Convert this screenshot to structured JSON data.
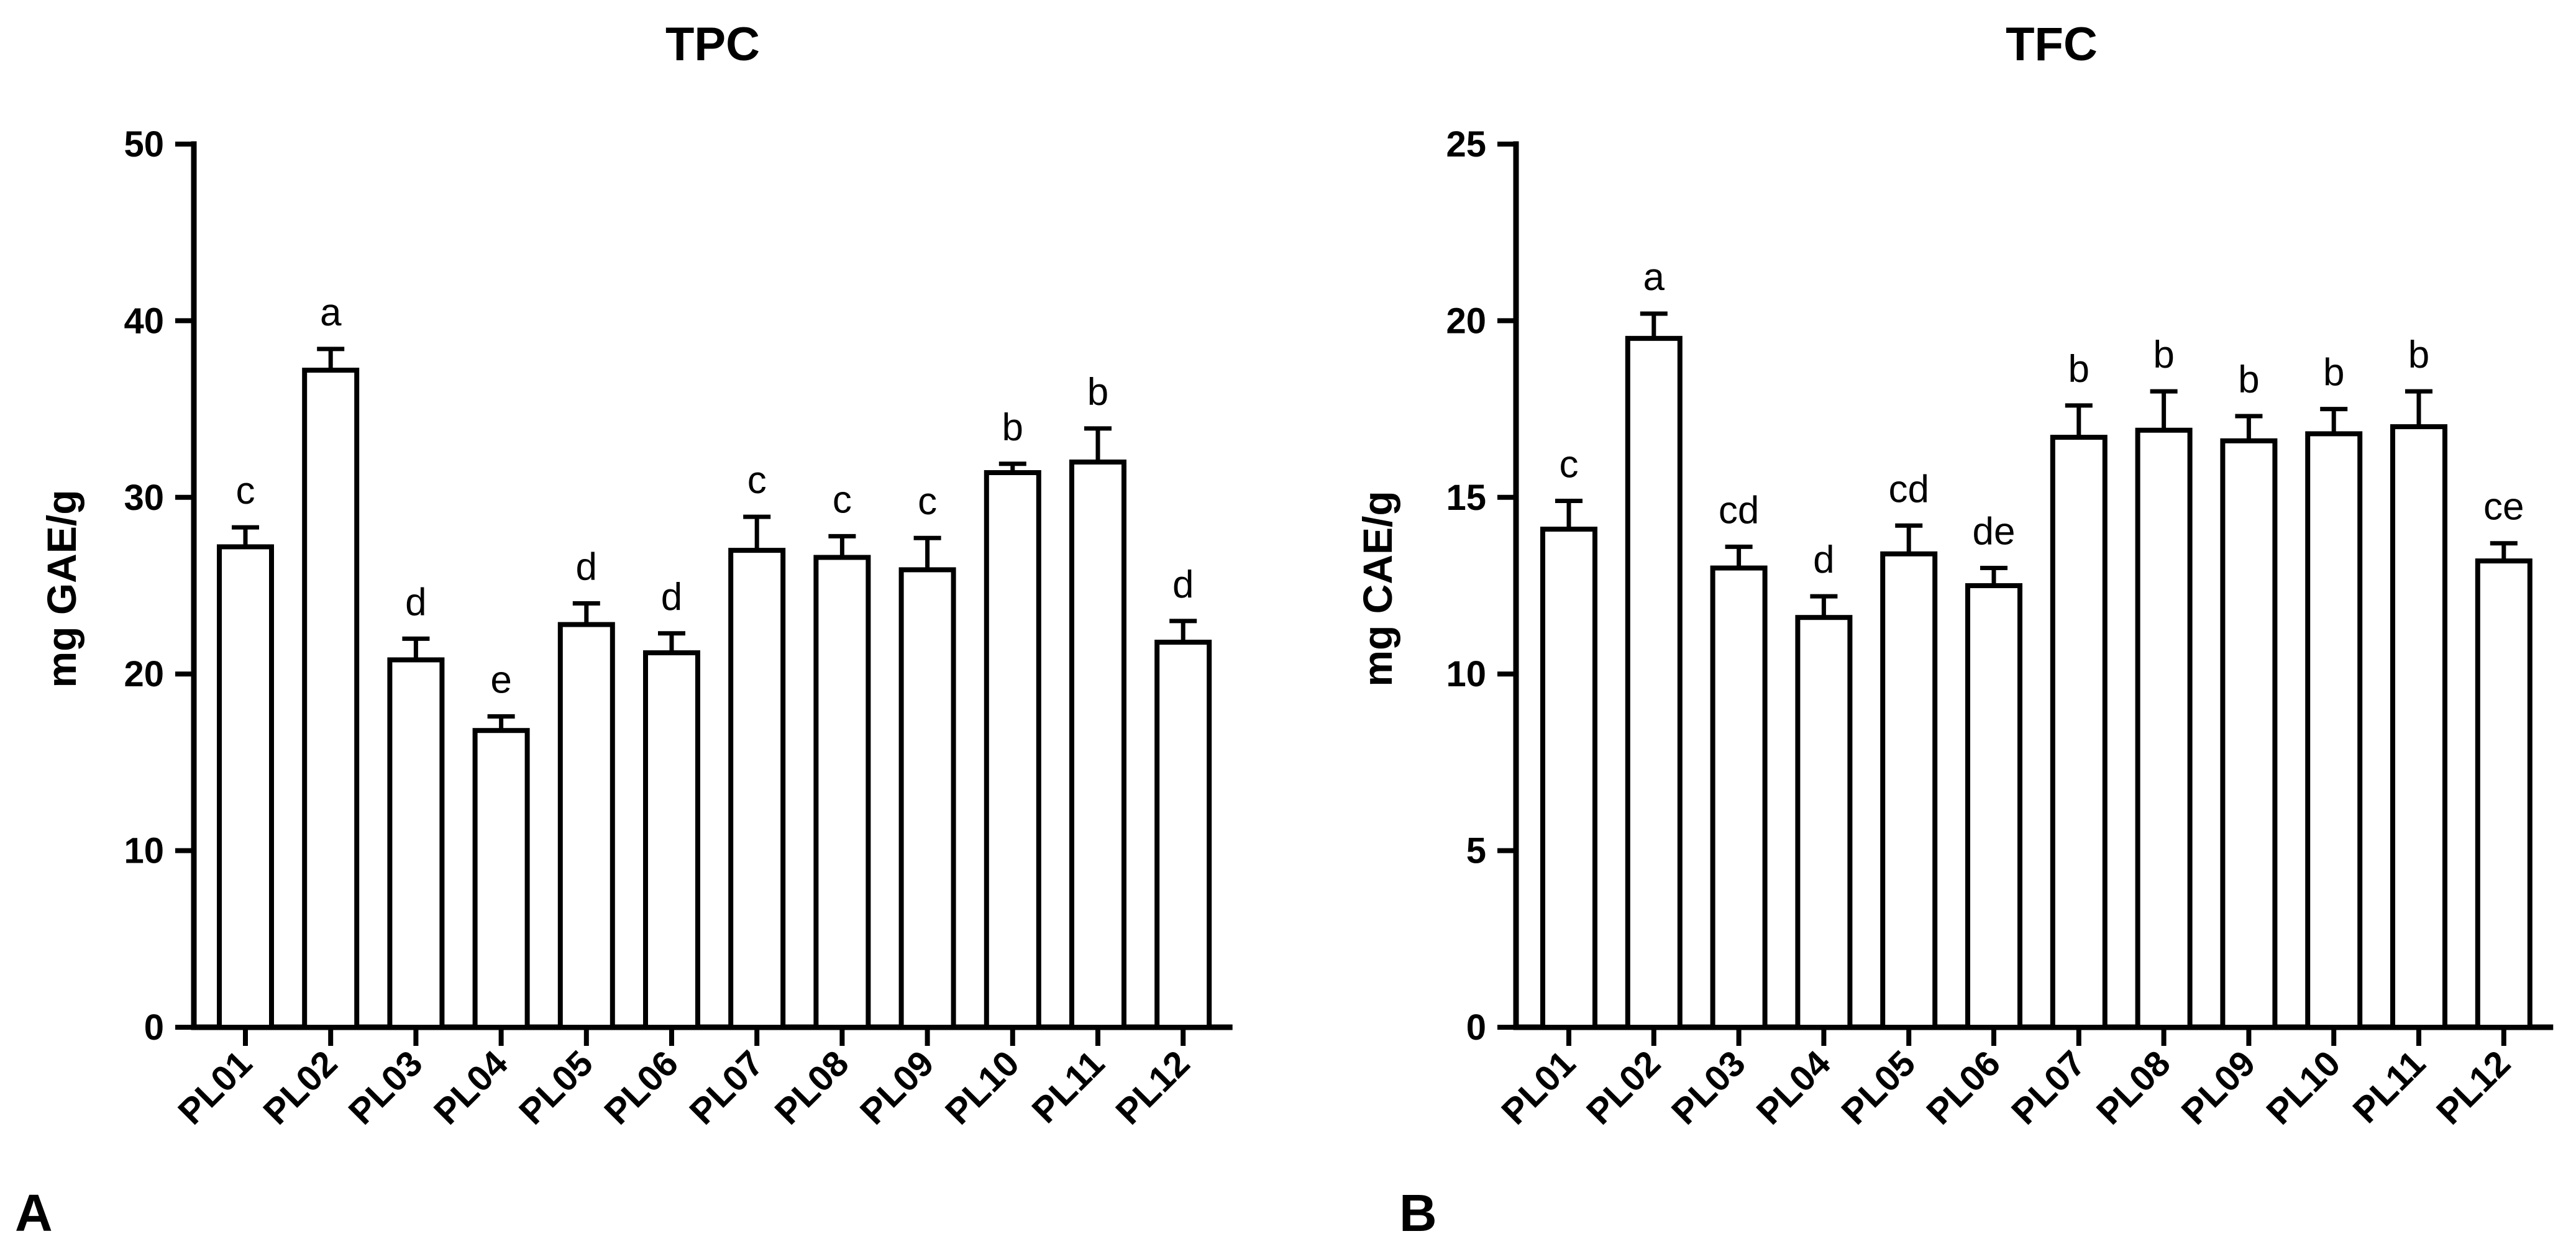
{
  "chart_data": [
    {
      "type": "bar",
      "panel_label": "A",
      "title": "TPC",
      "xlabel": "",
      "ylabel": "mg GAE/g",
      "ylim": [
        0,
        50
      ],
      "yticks": [
        0,
        10,
        20,
        30,
        40,
        50
      ],
      "categories": [
        "PL01",
        "PL02",
        "PL03",
        "PL04",
        "PL05",
        "PL06",
        "PL07",
        "PL08",
        "PL09",
        "PL10",
        "PL11",
        "PL12"
      ],
      "values": [
        27.2,
        37.2,
        20.8,
        16.8,
        22.8,
        21.2,
        27.0,
        26.6,
        25.9,
        31.4,
        32.0,
        21.8
      ],
      "errors": [
        1.1,
        1.2,
        1.2,
        0.8,
        1.2,
        1.1,
        1.9,
        1.2,
        1.8,
        0.5,
        1.9,
        1.2
      ],
      "labels": [
        "c",
        "a",
        "d",
        "e",
        "d",
        "d",
        "c",
        "c",
        "c",
        "b",
        "b",
        "d"
      ]
    },
    {
      "type": "bar",
      "panel_label": "B",
      "title": "TFC",
      "xlabel": "",
      "ylabel": "mg CAE/g",
      "ylim": [
        0,
        25
      ],
      "yticks": [
        0,
        5,
        10,
        15,
        20,
        25
      ],
      "categories": [
        "PL01",
        "PL02",
        "PL03",
        "PL04",
        "PL05",
        "PL06",
        "PL07",
        "PL08",
        "PL09",
        "PL10",
        "PL11",
        "PL12"
      ],
      "values": [
        14.1,
        19.5,
        13.0,
        11.6,
        13.4,
        12.5,
        16.7,
        16.9,
        16.6,
        16.8,
        17.0,
        13.2
      ],
      "errors": [
        0.8,
        0.7,
        0.6,
        0.6,
        0.8,
        0.5,
        0.9,
        1.1,
        0.7,
        0.7,
        1.0,
        0.5
      ],
      "labels": [
        "c",
        "a",
        "cd",
        "d",
        "cd",
        "de",
        "b",
        "b",
        "b",
        "b",
        "b",
        "ce"
      ]
    }
  ]
}
